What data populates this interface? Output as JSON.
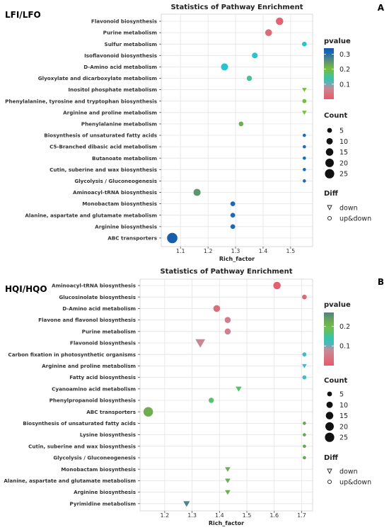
{
  "chart_data": [
    {
      "type": "scatter",
      "panel_label": "LFI/LFO",
      "letter": "A",
      "title": "Statistics of Pathway Enrichment",
      "xlabel": "Rich_factor",
      "xlim": [
        1.03,
        1.58
      ],
      "xticks": [
        1.1,
        1.2,
        1.3,
        1.4,
        1.5
      ],
      "grid": true,
      "points": [
        {
          "pathway": "Flavonoid biosynthesis",
          "rich_factor": 1.46,
          "pvalue": 0.015,
          "count": 10,
          "diff": "up&down"
        },
        {
          "pathway": "Purine metabolism",
          "rich_factor": 1.42,
          "pvalue": 0.025,
          "count": 8,
          "diff": "up&down"
        },
        {
          "pathway": "Sulfur metabolism",
          "rich_factor": 1.55,
          "pvalue": 0.12,
          "count": 3,
          "diff": "up&down"
        },
        {
          "pathway": "Isoflavonoid biosynthesis",
          "rich_factor": 1.37,
          "pvalue": 0.12,
          "count": 5,
          "diff": "up&down"
        },
        {
          "pathway": "D-Amino acid metabolism",
          "rich_factor": 1.26,
          "pvalue": 0.12,
          "count": 9,
          "diff": "up&down"
        },
        {
          "pathway": "Glyoxylate and dicarboxylate metabolism",
          "rich_factor": 1.35,
          "pvalue": 0.15,
          "count": 4,
          "diff": "up&down"
        },
        {
          "pathway": "Inositol phosphate metabolism",
          "rich_factor": 1.55,
          "pvalue": 0.2,
          "count": 2,
          "diff": "down"
        },
        {
          "pathway": "Phenylalanine, tyrosine and tryptophan biosynthesis",
          "rich_factor": 1.55,
          "pvalue": 0.2,
          "count": 2,
          "diff": "up&down"
        },
        {
          "pathway": "Arginine and proline metabolism",
          "rich_factor": 1.55,
          "pvalue": 0.2,
          "count": 2,
          "diff": "down"
        },
        {
          "pathway": "Phenylalanine metabolism",
          "rich_factor": 1.32,
          "pvalue": 0.22,
          "count": 3,
          "diff": "up&down"
        },
        {
          "pathway": "Biosynthesis of unsaturated fatty acids",
          "rich_factor": 1.55,
          "pvalue": 0.3,
          "count": 1,
          "diff": "up&down"
        },
        {
          "pathway": "C5-Branched dibasic acid metabolism",
          "rich_factor": 1.55,
          "pvalue": 0.3,
          "count": 1,
          "diff": "up&down"
        },
        {
          "pathway": "Butanoate metabolism",
          "rich_factor": 1.55,
          "pvalue": 0.3,
          "count": 1,
          "diff": "up&down"
        },
        {
          "pathway": "Cutin, suberine and wax biosynthesis",
          "rich_factor": 1.55,
          "pvalue": 0.3,
          "count": 1,
          "diff": "up&down"
        },
        {
          "pathway": "Glycolysis / Gluconeogenesis",
          "rich_factor": 1.55,
          "pvalue": 0.3,
          "count": 1,
          "diff": "up&down"
        },
        {
          "pathway": "Aminoacyl-tRNA biosynthesis",
          "rich_factor": 1.16,
          "pvalue": 0.25,
          "count": 9,
          "diff": "up&down"
        },
        {
          "pathway": "Monobactam biosynthesis",
          "rich_factor": 1.29,
          "pvalue": 0.31,
          "count": 3,
          "diff": "up&down"
        },
        {
          "pathway": "Alanine, aspartate and glutamate metabolism",
          "rich_factor": 1.29,
          "pvalue": 0.31,
          "count": 3,
          "diff": "up&down"
        },
        {
          "pathway": "Arginine biosynthesis",
          "rich_factor": 1.29,
          "pvalue": 0.31,
          "count": 3,
          "diff": "up&down"
        },
        {
          "pathway": "ABC transporters",
          "rich_factor": 1.07,
          "pvalue": 0.33,
          "count": 22,
          "diff": "up&down"
        }
      ],
      "legend": {
        "pvalue": {
          "title": "pvalue",
          "ticks": [
            "0.3",
            "0.2",
            "0.1"
          ],
          "tick_values": [
            0.3,
            0.2,
            0.1
          ],
          "range": [
            0.0,
            0.34
          ]
        },
        "count": {
          "title": "Count",
          "labels": [
            "5",
            "10",
            "15",
            "20",
            "25"
          ],
          "values": [
            5,
            10,
            15,
            20,
            25
          ]
        },
        "diff": {
          "title": "Diff",
          "labels": [
            "down",
            "up&down"
          ]
        }
      }
    },
    {
      "type": "scatter",
      "panel_label": "HQI/HQO",
      "letter": "B",
      "title": "Statistics of Pathway Enrichment",
      "xlabel": "Rich_factor",
      "xlim": [
        1.11,
        1.74
      ],
      "xticks": [
        1.2,
        1.3,
        1.4,
        1.5,
        1.6,
        1.7
      ],
      "grid": true,
      "points": [
        {
          "pathway": "Aminoacyl-tRNA biosynthesis",
          "rich_factor": 1.61,
          "pvalue": 0.01,
          "count": 10,
          "diff": "up&down"
        },
        {
          "pathway": "Glucosinolate biosynthesis",
          "rich_factor": 1.71,
          "pvalue": 0.02,
          "count": 3,
          "diff": "up&down"
        },
        {
          "pathway": "D-Amino acid metabolism",
          "rich_factor": 1.39,
          "pvalue": 0.03,
          "count": 8,
          "diff": "up&down"
        },
        {
          "pathway": "Flavone and flavonol biosynthesis",
          "rich_factor": 1.43,
          "pvalue": 0.06,
          "count": 6,
          "diff": "up&down"
        },
        {
          "pathway": "Purine metabolism",
          "rich_factor": 1.43,
          "pvalue": 0.06,
          "count": 6,
          "diff": "up&down"
        },
        {
          "pathway": "Flavonoid biosynthesis",
          "rich_factor": 1.33,
          "pvalue": 0.07,
          "count": 14,
          "diff": "down"
        },
        {
          "pathway": "Carbon fixation in photosynthetic organisms",
          "rich_factor": 1.71,
          "pvalue": 0.11,
          "count": 2,
          "diff": "up&down"
        },
        {
          "pathway": "Arginine and proline metabolism",
          "rich_factor": 1.71,
          "pvalue": 0.11,
          "count": 2,
          "diff": "down"
        },
        {
          "pathway": "Fatty acid biosynthesis",
          "rich_factor": 1.71,
          "pvalue": 0.11,
          "count": 2,
          "diff": "up&down"
        },
        {
          "pathway": "Cyanoamino acid metabolism",
          "rich_factor": 1.47,
          "pvalue": 0.17,
          "count": 4,
          "diff": "down"
        },
        {
          "pathway": "Phenylpropanoid biosynthesis",
          "rich_factor": 1.37,
          "pvalue": 0.17,
          "count": 4,
          "diff": "up&down"
        },
        {
          "pathway": "ABC transporters",
          "rich_factor": 1.14,
          "pvalue": 0.22,
          "count": 18,
          "diff": "up&down"
        },
        {
          "pathway": "Biosynthesis of unsaturated fatty acids",
          "rich_factor": 1.71,
          "pvalue": 0.23,
          "count": 1,
          "diff": "up&down"
        },
        {
          "pathway": "Lysine biosynthesis",
          "rich_factor": 1.71,
          "pvalue": 0.23,
          "count": 1,
          "diff": "up&down"
        },
        {
          "pathway": "Cutin, suberine and wax biosynthesis",
          "rich_factor": 1.71,
          "pvalue": 0.23,
          "count": 1,
          "diff": "up&down"
        },
        {
          "pathway": "Glycolysis / Gluconeogenesis",
          "rich_factor": 1.71,
          "pvalue": 0.23,
          "count": 1,
          "diff": "up&down"
        },
        {
          "pathway": "Monobactam biosynthesis",
          "rich_factor": 1.43,
          "pvalue": 0.22,
          "count": 3,
          "diff": "down"
        },
        {
          "pathway": "Alanine, aspartate and glutamate metabolism",
          "rich_factor": 1.43,
          "pvalue": 0.22,
          "count": 3,
          "diff": "down"
        },
        {
          "pathway": "Arginine biosynthesis",
          "rich_factor": 1.43,
          "pvalue": 0.22,
          "count": 3,
          "diff": "down"
        },
        {
          "pathway": "Pyrimidine metabolism",
          "rich_factor": 1.28,
          "pvalue": 0.27,
          "count": 5,
          "diff": "down"
        }
      ],
      "legend": {
        "pvalue": {
          "title": "pvalue",
          "ticks": [
            "0.2",
            "0.1"
          ],
          "tick_values": [
            0.2,
            0.1
          ],
          "range": [
            0.0,
            0.27
          ]
        },
        "count": {
          "title": "Count",
          "labels": [
            "5",
            "10",
            "15",
            "20",
            "25"
          ],
          "values": [
            5,
            10,
            15,
            20,
            25
          ]
        },
        "diff": {
          "title": "Diff",
          "labels": [
            "down",
            "up&down"
          ]
        }
      }
    }
  ]
}
